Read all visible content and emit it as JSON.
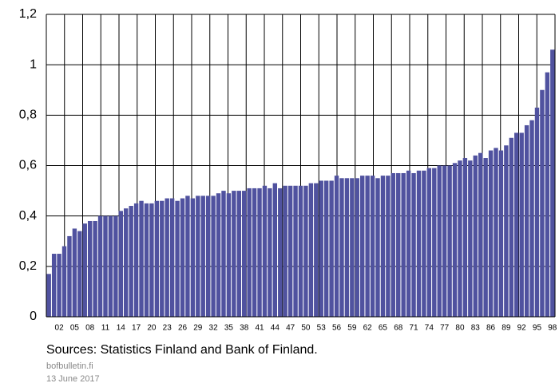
{
  "chart_data": {
    "type": "bar",
    "categories": [
      null,
      null,
      "02",
      null,
      null,
      "05",
      null,
      null,
      "08",
      null,
      null,
      "11",
      null,
      null,
      "14",
      null,
      null,
      "17",
      null,
      null,
      "20",
      null,
      null,
      "23",
      null,
      null,
      "26",
      null,
      null,
      "29",
      null,
      null,
      "32",
      null,
      null,
      "35",
      null,
      null,
      "38",
      null,
      null,
      "41",
      null,
      null,
      "44",
      null,
      null,
      "47",
      null,
      null,
      "50",
      null,
      null,
      "53",
      null,
      null,
      "56",
      null,
      null,
      "59",
      null,
      null,
      "62",
      null,
      null,
      "65",
      null,
      null,
      "68",
      null,
      null,
      "71",
      null,
      null,
      "74",
      null,
      null,
      "77",
      null,
      null,
      "80",
      null,
      null,
      "83",
      null,
      null,
      "86",
      null,
      null,
      "89",
      null,
      null,
      "92",
      null,
      null,
      "95",
      null,
      null,
      "98"
    ],
    "values": [
      0.17,
      0.25,
      0.25,
      0.28,
      0.32,
      0.35,
      0.34,
      0.37,
      0.38,
      0.38,
      0.4,
      0.4,
      0.4,
      0.4,
      0.42,
      0.43,
      0.44,
      0.45,
      0.46,
      0.45,
      0.45,
      0.46,
      0.46,
      0.47,
      0.47,
      0.46,
      0.47,
      0.48,
      0.47,
      0.48,
      0.48,
      0.48,
      0.48,
      0.49,
      0.5,
      0.49,
      0.5,
      0.5,
      0.5,
      0.51,
      0.51,
      0.51,
      0.52,
      0.51,
      0.53,
      0.51,
      0.52,
      0.52,
      0.52,
      0.52,
      0.52,
      0.53,
      0.53,
      0.54,
      0.54,
      0.54,
      0.56,
      0.55,
      0.55,
      0.55,
      0.55,
      0.56,
      0.56,
      0.56,
      0.55,
      0.56,
      0.56,
      0.57,
      0.57,
      0.57,
      0.58,
      0.57,
      0.58,
      0.58,
      0.59,
      0.59,
      0.6,
      0.6,
      0.6,
      0.61,
      0.62,
      0.63,
      0.62,
      0.64,
      0.65,
      0.63,
      0.66,
      0.67,
      0.66,
      0.68,
      0.71,
      0.73,
      0.73,
      0.76,
      0.78,
      0.83,
      0.9,
      0.97,
      1.06
    ],
    "color": "#50529f",
    "ylim": [
      0,
      1.2
    ],
    "yticks": [
      0,
      {
        "value": 0.2,
        "label": "0,2"
      },
      {
        "value": 0.4,
        "label": "0,4"
      },
      {
        "value": 0.6,
        "label": "0,6"
      },
      {
        "value": 0.8,
        "label": "0,8"
      },
      1,
      {
        "value": 1.2,
        "label": "1,2"
      }
    ],
    "grid": true,
    "source": "Sources: Statistics Finland and Bank of Finland.",
    "publisher": "bofbulletin.fi",
    "date": "13 June 2017"
  }
}
